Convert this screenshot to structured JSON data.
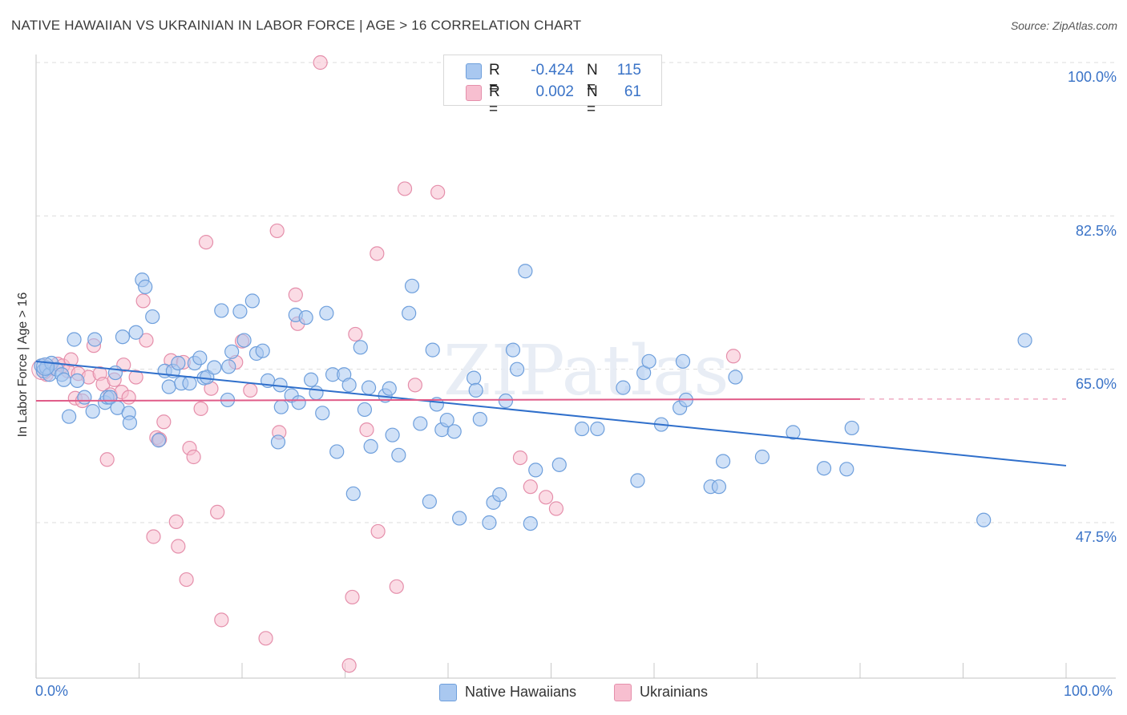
{
  "title": "NATIVE HAWAIIAN VS UKRAINIAN IN LABOR FORCE | AGE > 16 CORRELATION CHART",
  "source": "Source: ZipAtlas.com",
  "watermark": "ZIPatlas",
  "colors": {
    "blue_fill": "#a9c8f0",
    "blue_stroke": "#6e9fdc",
    "blue_line": "#2f6fcb",
    "pink_fill": "#f7bfd0",
    "pink_stroke": "#e58fab",
    "pink_line": "#e05b88",
    "axis_text": "#3a73c7",
    "grid": "#dcdcdc"
  },
  "legend": {
    "rows": [
      {
        "r_label": "R =",
        "r_value": "-0.424",
        "n_label": "N =",
        "n_value": "115",
        "color": "#a9c8f0",
        "border": "#6e9fdc"
      },
      {
        "r_label": "R =",
        "r_value": "0.002",
        "n_label": "N =",
        "n_value": "61",
        "color": "#f7bfd0",
        "border": "#e58fab"
      }
    ]
  },
  "bottom_legend": [
    {
      "label": "Native Hawaiians",
      "color": "#a9c8f0",
      "border": "#6e9fdc"
    },
    {
      "label": "Ukrainians",
      "color": "#f7bfd0",
      "border": "#e58fab"
    }
  ],
  "chart_data": {
    "type": "scatter",
    "title": "NATIVE HAWAIIAN VS UKRAINIAN IN LABOR FORCE | AGE > 16 CORRELATION CHART",
    "xlabel": "",
    "ylabel": "In Labor Force | Age > 16",
    "xlim": [
      0,
      100
    ],
    "ylim": [
      28.4,
      100.8
    ],
    "x_tick_labels": [
      "0.0%",
      "100.0%"
    ],
    "y_ticks": [
      47.5,
      65.0,
      82.5,
      100.0
    ],
    "y_tick_labels": [
      "47.5%",
      "65.0%",
      "82.5%",
      "100.0%"
    ],
    "grid": true,
    "legend_position": "top-center",
    "series": [
      {
        "name": "Native Hawaiians",
        "r": -0.424,
        "n": 115,
        "trend": {
          "x": [
            0,
            100
          ],
          "y": [
            65.9,
            54.0
          ]
        },
        "points": [
          [
            0.5,
            65.4
          ],
          [
            0.7,
            64.8
          ],
          [
            1.0,
            65.2
          ],
          [
            1.3,
            64.4
          ],
          [
            1.5,
            65.7
          ],
          [
            2.0,
            65.0
          ],
          [
            2.5,
            64.4
          ],
          [
            2.7,
            63.8
          ],
          [
            3.2,
            59.6
          ],
          [
            3.7,
            68.4
          ],
          [
            4.0,
            63.7
          ],
          [
            4.7,
            61.8
          ],
          [
            5.5,
            60.2
          ],
          [
            5.7,
            68.4
          ],
          [
            6.7,
            61.2
          ],
          [
            6.9,
            61.8
          ],
          [
            7.2,
            61.8
          ],
          [
            7.7,
            64.6
          ],
          [
            7.9,
            60.6
          ],
          [
            8.4,
            68.7
          ],
          [
            9.0,
            60.0
          ],
          [
            9.1,
            58.9
          ],
          [
            9.7,
            69.2
          ],
          [
            10.3,
            75.2
          ],
          [
            10.6,
            74.4
          ],
          [
            11.3,
            71.0
          ],
          [
            11.9,
            56.9
          ],
          [
            12.5,
            64.8
          ],
          [
            12.9,
            63.0
          ],
          [
            13.3,
            64.8
          ],
          [
            13.8,
            65.7
          ],
          [
            14.1,
            63.4
          ],
          [
            14.9,
            63.4
          ],
          [
            15.4,
            65.7
          ],
          [
            15.9,
            66.3
          ],
          [
            16.3,
            64.0
          ],
          [
            16.6,
            64.1
          ],
          [
            17.3,
            65.2
          ],
          [
            18.0,
            71.7
          ],
          [
            18.6,
            61.5
          ],
          [
            18.7,
            65.3
          ],
          [
            19.0,
            67.0
          ],
          [
            19.8,
            71.6
          ],
          [
            20.2,
            68.3
          ],
          [
            21.0,
            72.8
          ],
          [
            21.4,
            66.8
          ],
          [
            22.0,
            67.1
          ],
          [
            22.5,
            63.7
          ],
          [
            23.5,
            56.7
          ],
          [
            23.7,
            63.2
          ],
          [
            23.8,
            60.7
          ],
          [
            24.8,
            62.0
          ],
          [
            25.2,
            71.2
          ],
          [
            25.5,
            61.2
          ],
          [
            26.2,
            70.9
          ],
          [
            26.7,
            63.8
          ],
          [
            27.2,
            62.3
          ],
          [
            27.8,
            60.0
          ],
          [
            28.2,
            71.4
          ],
          [
            28.8,
            64.4
          ],
          [
            29.2,
            55.6
          ],
          [
            29.9,
            64.4
          ],
          [
            30.4,
            63.2
          ],
          [
            30.8,
            50.8
          ],
          [
            31.5,
            67.5
          ],
          [
            31.9,
            60.4
          ],
          [
            32.3,
            62.9
          ],
          [
            32.5,
            56.2
          ],
          [
            33.9,
            62.0
          ],
          [
            34.3,
            62.8
          ],
          [
            34.6,
            57.5
          ],
          [
            35.2,
            55.2
          ],
          [
            36.2,
            71.4
          ],
          [
            36.5,
            74.5
          ],
          [
            37.3,
            58.8
          ],
          [
            38.2,
            49.9
          ],
          [
            38.5,
            67.2
          ],
          [
            38.9,
            61.0
          ],
          [
            39.4,
            58.1
          ],
          [
            39.9,
            59.2
          ],
          [
            40.6,
            57.9
          ],
          [
            41.1,
            48.0
          ],
          [
            42.5,
            64.0
          ],
          [
            42.7,
            62.6
          ],
          [
            43.1,
            59.3
          ],
          [
            44.0,
            47.5
          ],
          [
            44.4,
            49.8
          ],
          [
            45.0,
            50.7
          ],
          [
            45.6,
            61.4
          ],
          [
            46.3,
            67.2
          ],
          [
            46.7,
            65.0
          ],
          [
            47.5,
            76.2
          ],
          [
            48.0,
            47.4
          ],
          [
            48.5,
            53.5
          ],
          [
            50.8,
            54.1
          ],
          [
            53.0,
            58.2
          ],
          [
            54.5,
            58.2
          ],
          [
            57.0,
            62.9
          ],
          [
            58.4,
            52.3
          ],
          [
            59.0,
            64.6
          ],
          [
            59.5,
            65.9
          ],
          [
            60.7,
            58.7
          ],
          [
            62.5,
            60.6
          ],
          [
            62.8,
            65.9
          ],
          [
            63.1,
            61.5
          ],
          [
            65.5,
            51.6
          ],
          [
            66.3,
            51.6
          ],
          [
            66.7,
            54.5
          ],
          [
            67.9,
            64.1
          ],
          [
            70.5,
            55.0
          ],
          [
            73.5,
            57.8
          ],
          [
            76.5,
            53.7
          ],
          [
            78.7,
            53.6
          ],
          [
            79.2,
            58.3
          ],
          [
            92.0,
            47.8
          ],
          [
            96.0,
            68.3
          ]
        ]
      },
      {
        "name": "Ukrainians",
        "r": 0.002,
        "n": 61,
        "trend": {
          "x": [
            0,
            80
          ],
          "y": [
            61.4,
            61.6
          ]
        },
        "trend_dashed_to": 100,
        "points": [
          [
            0.7,
            64.8
          ],
          [
            1.0,
            64.4
          ],
          [
            1.4,
            65.1
          ],
          [
            2.1,
            65.6
          ],
          [
            2.6,
            65.4
          ],
          [
            3.1,
            64.8
          ],
          [
            3.4,
            66.1
          ],
          [
            3.8,
            61.7
          ],
          [
            4.1,
            64.5
          ],
          [
            4.5,
            61.4
          ],
          [
            5.1,
            64.1
          ],
          [
            5.6,
            67.7
          ],
          [
            6.2,
            64.5
          ],
          [
            6.5,
            63.3
          ],
          [
            6.9,
            54.7
          ],
          [
            7.2,
            62.1
          ],
          [
            7.6,
            63.8
          ],
          [
            8.3,
            62.4
          ],
          [
            8.5,
            65.5
          ],
          [
            9.0,
            61.8
          ],
          [
            9.7,
            64.1
          ],
          [
            10.4,
            72.8
          ],
          [
            10.7,
            68.3
          ],
          [
            11.4,
            45.9
          ],
          [
            11.7,
            57.2
          ],
          [
            12.0,
            57.0
          ],
          [
            12.4,
            59.0
          ],
          [
            13.1,
            66.0
          ],
          [
            13.6,
            47.6
          ],
          [
            13.8,
            44.8
          ],
          [
            14.3,
            65.8
          ],
          [
            14.6,
            41.0
          ],
          [
            14.9,
            56.0
          ],
          [
            15.3,
            55.0
          ],
          [
            16.0,
            60.5
          ],
          [
            16.5,
            79.5
          ],
          [
            17.0,
            62.8
          ],
          [
            17.6,
            48.7
          ],
          [
            18.0,
            36.4
          ],
          [
            19.4,
            65.8
          ],
          [
            20.0,
            68.2
          ],
          [
            20.8,
            62.6
          ],
          [
            22.3,
            34.3
          ],
          [
            23.4,
            80.8
          ],
          [
            23.6,
            57.8
          ],
          [
            25.2,
            73.5
          ],
          [
            25.4,
            70.2
          ],
          [
            27.6,
            100.0
          ],
          [
            30.4,
            31.2
          ],
          [
            30.7,
            39.0
          ],
          [
            31.0,
            69.0
          ],
          [
            32.1,
            58.1
          ],
          [
            33.1,
            78.2
          ],
          [
            33.2,
            46.5
          ],
          [
            35.0,
            40.2
          ],
          [
            35.8,
            85.6
          ],
          [
            36.8,
            63.2
          ],
          [
            39.0,
            85.2
          ],
          [
            47.0,
            54.9
          ],
          [
            48.0,
            51.6
          ],
          [
            49.5,
            50.4
          ]
        ]
      }
    ],
    "extra_pink_point": [
      50.5,
      49.1
    ],
    "extra_pink_point2": [
      67.7,
      66.5
    ]
  }
}
